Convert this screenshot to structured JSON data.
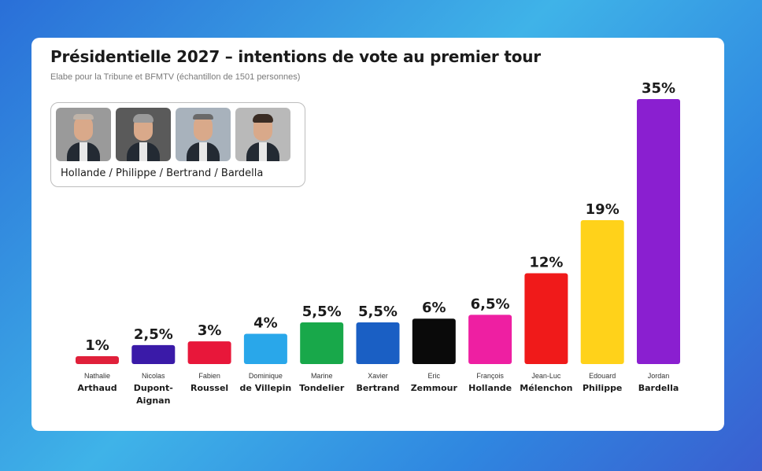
{
  "title": "Présidentielle 2027 – intentions de vote au premier tour",
  "subtitle": "Elabe pour la Tribune et BFMTV (échantillon de 1501 personnes)",
  "photo_caption": "Hollande / Philippe / Bertrand / Bardella",
  "chart_data": {
    "type": "bar",
    "title": "Présidentielle 2027 – intentions de vote au premier tour",
    "subtitle": "Elabe pour la Tribune et BFMTV (échantillon de 1501 personnes)",
    "categories": [
      {
        "first": "Nathalie",
        "last": [
          "Arthaud"
        ]
      },
      {
        "first": "Nicolas",
        "last": [
          "Dupont-",
          "Aignan"
        ]
      },
      {
        "first": "Fabien",
        "last": [
          "Roussel"
        ]
      },
      {
        "first": "Dominique",
        "last": [
          "de Villepin"
        ]
      },
      {
        "first": "Marine",
        "last": [
          "Tondelier"
        ]
      },
      {
        "first": "Xavier",
        "last": [
          "Bertrand"
        ]
      },
      {
        "first": "Eric",
        "last": [
          "Zemmour"
        ]
      },
      {
        "first": "François",
        "last": [
          "Hollande"
        ]
      },
      {
        "first": "Jean-Luc",
        "last": [
          "Mélenchon"
        ]
      },
      {
        "first": "Edouard",
        "last": [
          "Philippe"
        ]
      },
      {
        "first": "Jordan",
        "last": [
          "Bardella"
        ]
      }
    ],
    "values": [
      1,
      2.5,
      3,
      4,
      5.5,
      5.5,
      6,
      6.5,
      12,
      19,
      35
    ],
    "value_labels": [
      "1%",
      "2,5%",
      "3%",
      "4%",
      "5,5%",
      "5,5%",
      "6%",
      "6,5%",
      "12%",
      "19%",
      "35%"
    ],
    "colors": [
      "#e0203a",
      "#3a1aa8",
      "#e8173a",
      "#29a7ea",
      "#18a84a",
      "#1a5fc4",
      "#0a0a0a",
      "#ee1fa2",
      "#f01a1a",
      "#ffd21a",
      "#8a1fd0"
    ],
    "grid": false,
    "legend": "none"
  }
}
